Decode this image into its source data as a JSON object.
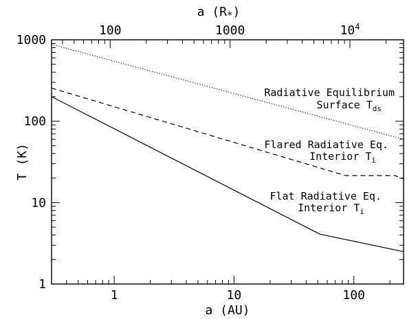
{
  "chart_data": {
    "type": "line",
    "title": "",
    "xlabel": "a (AU)",
    "ylabel": "T (K)",
    "top_xlabel": "a (R",
    "top_xlabel_sub": "*",
    "top_xlabel_close": ")",
    "x_scale": "log",
    "y_scale": "log",
    "xlim": [
      0.3,
      260
    ],
    "ylim": [
      1,
      1000
    ],
    "top_xlim": [
      32.4,
      28000
    ],
    "grid": false,
    "legend": "none",
    "x_ticks": [
      {
        "value": 1,
        "label": "1"
      },
      {
        "value": 10,
        "label": "10"
      },
      {
        "value": 100,
        "label": "100"
      }
    ],
    "y_ticks": [
      {
        "value": 1,
        "label": "1"
      },
      {
        "value": 10,
        "label": "10"
      },
      {
        "value": 100,
        "label": "100"
      },
      {
        "value": 1000,
        "label": "1000"
      }
    ],
    "top_ticks": [
      {
        "value": 100,
        "label": "100"
      },
      {
        "value": 1000,
        "label": "1000"
      },
      {
        "value": 10000,
        "label": "10",
        "sup": "4"
      }
    ],
    "series": [
      {
        "style": "dotted",
        "x": [
          0.3,
          260
        ],
        "y": [
          880,
          60
        ]
      },
      {
        "style": "dashed",
        "x": [
          0.3,
          85,
          220,
          260
        ],
        "y": [
          255,
          21.5,
          21.5,
          19.5
        ]
      },
      {
        "style": "solid",
        "x": [
          0.3,
          52,
          260
        ],
        "y": [
          200,
          4.1,
          2.5
        ]
      }
    ],
    "annotations": [
      {
        "lines": [
          {
            "text": "Radiative Equilibrium"
          },
          {
            "text": "Surface T",
            "sub": "ds"
          }
        ]
      },
      {
        "lines": [
          {
            "text": "Flared Radiative Eq."
          },
          {
            "text": "Interior T",
            "sub": "i"
          }
        ]
      },
      {
        "lines": [
          {
            "text": "Flat Radiative Eq."
          },
          {
            "text": "Interior T",
            "sub": "i"
          }
        ]
      }
    ]
  }
}
